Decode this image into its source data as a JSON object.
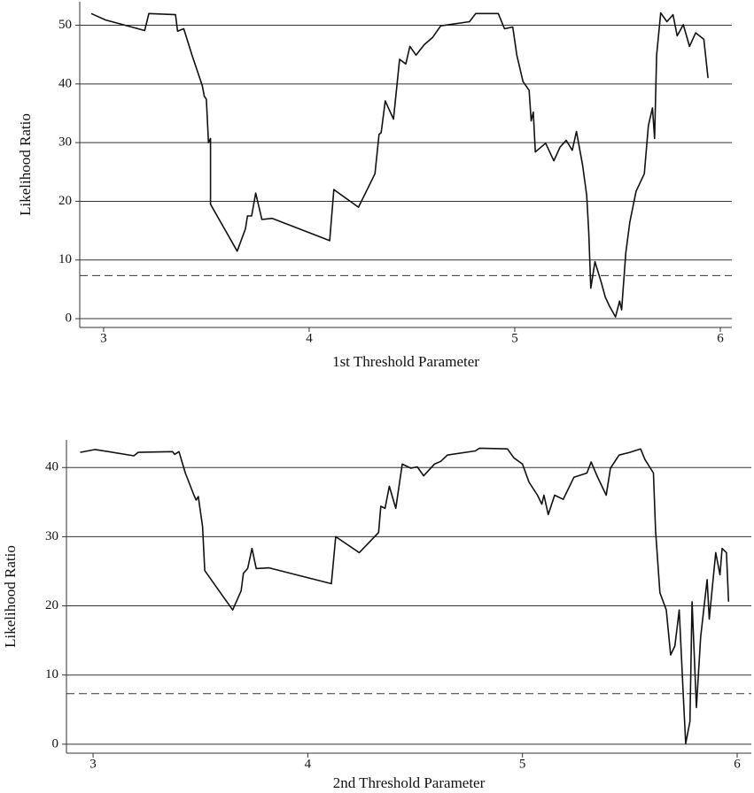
{
  "chart_data": [
    {
      "type": "line",
      "x_label": "1st Threshold Parameter",
      "y_label": "Likelihood Ratio",
      "xlim": [
        2.884,
        6.056
      ],
      "xticks": [
        3,
        4,
        5,
        6
      ],
      "ylim": [
        -1.5,
        54
      ],
      "yticks": [
        0,
        10,
        20,
        30,
        40,
        50
      ],
      "grid": true,
      "hlines": [
        7.35
      ],
      "hline_style": "dashed",
      "x": [
        2.94,
        3.01,
        3.2,
        3.22,
        3.35,
        3.36,
        3.39,
        3.43,
        3.48,
        3.49,
        3.5,
        3.51,
        3.52,
        3.52,
        3.65,
        3.69,
        3.7,
        3.72,
        3.74,
        3.77,
        3.82,
        4.1,
        4.12,
        4.24,
        4.32,
        4.34,
        4.35,
        4.37,
        4.41,
        4.44,
        4.47,
        4.49,
        4.52,
        4.56,
        4.6,
        4.64,
        4.78,
        4.81,
        4.92,
        4.95,
        4.99,
        5.01,
        5.04,
        5.07,
        5.08,
        5.09,
        5.1,
        5.15,
        5.19,
        5.22,
        5.25,
        5.28,
        5.3,
        5.33,
        5.35,
        5.36,
        5.37,
        5.39,
        5.42,
        5.44,
        5.46,
        5.49,
        5.51,
        5.52,
        5.54,
        5.56,
        5.59,
        5.63,
        5.65,
        5.67,
        5.68,
        5.69,
        5.71,
        5.74,
        5.77,
        5.79,
        5.82,
        5.85,
        5.88,
        5.92,
        5.94
      ],
      "series": [
        {
          "name": "Likelihood Ratio",
          "color": "#111111",
          "values": [
            52,
            50.9,
            49.1,
            52,
            51.8,
            49,
            49.4,
            44.9,
            39.7,
            37.9,
            37.4,
            30,
            30.7,
            19.5,
            11.5,
            15.3,
            17.5,
            17.5,
            21.4,
            16.9,
            17.1,
            13.3,
            22,
            19,
            24.7,
            31.4,
            31.7,
            37.1,
            34,
            44.2,
            43.4,
            46.4,
            44.9,
            46.7,
            47.9,
            49.9,
            50.6,
            52,
            52,
            49.4,
            49.7,
            44.9,
            40.4,
            38.9,
            33.7,
            35.2,
            28.4,
            29.9,
            26.9,
            29.2,
            30.4,
            28.7,
            31.9,
            26.2,
            21,
            14.7,
            5.2,
            9.7,
            6.3,
            3.7,
            2.2,
            0.3,
            3,
            1.5,
            11.2,
            16.5,
            21.7,
            24.7,
            32.9,
            35.9,
            30.7,
            44.9,
            52.1,
            50.6,
            51.8,
            48.2,
            50.1,
            46.4,
            48.7,
            47.6,
            41
          ]
        }
      ]
    },
    {
      "type": "line",
      "x_label": "2nd Threshold Parameter",
      "y_label": "Likelihood Ratio",
      "xlim": [
        2.876,
        6.066
      ],
      "xticks": [
        3,
        4,
        5,
        6
      ],
      "ylim": [
        -1.3,
        44
      ],
      "yticks": [
        0,
        10,
        20,
        30,
        40
      ],
      "grid": true,
      "hlines": [
        7.3
      ],
      "hline_style": "dashed",
      "x": [
        2.94,
        3.01,
        3.19,
        3.21,
        3.37,
        3.38,
        3.4,
        3.43,
        3.47,
        3.48,
        3.49,
        3.51,
        3.52,
        3.65,
        3.69,
        3.7,
        3.72,
        3.74,
        3.76,
        3.82,
        4.11,
        4.13,
        4.24,
        4.33,
        4.34,
        4.36,
        4.38,
        4.41,
        4.44,
        4.48,
        4.51,
        4.54,
        4.59,
        4.62,
        4.65,
        4.78,
        4.8,
        4.93,
        4.96,
        5.0,
        5.03,
        5.07,
        5.09,
        5.1,
        5.12,
        5.15,
        5.19,
        5.24,
        5.3,
        5.32,
        5.35,
        5.39,
        5.41,
        5.45,
        5.5,
        5.55,
        5.57,
        5.61,
        5.62,
        5.64,
        5.67,
        5.69,
        5.71,
        5.73,
        5.75,
        5.76,
        5.78,
        5.79,
        5.81,
        5.83,
        5.86,
        5.87,
        5.9,
        5.92,
        5.93,
        5.95,
        5.96
      ],
      "series": [
        {
          "name": "Likelihood Ratio",
          "color": "#111111",
          "values": [
            42.2,
            42.6,
            41.7,
            42.2,
            42.3,
            41.9,
            42.3,
            39.2,
            36,
            35.3,
            35.8,
            31.5,
            25.1,
            19.4,
            22.2,
            24.7,
            25.4,
            28.3,
            25.4,
            25.5,
            23.2,
            30,
            27.7,
            30.6,
            34.4,
            34.1,
            37.3,
            34.1,
            40.5,
            39.9,
            40.1,
            38.8,
            40.5,
            40.9,
            41.8,
            42.4,
            42.8,
            42.7,
            41.4,
            40.5,
            37.9,
            36,
            34.7,
            36,
            33.2,
            36,
            35.4,
            38.6,
            39.2,
            40.8,
            38.6,
            36,
            39.9,
            41.8,
            42.2,
            42.7,
            41.2,
            39.2,
            30.9,
            21.9,
            19.4,
            12.9,
            14.2,
            19.4,
            6.5,
            0.1,
            3.3,
            20.6,
            5.3,
            15.5,
            23.8,
            18.1,
            27.7,
            24.5,
            28.3,
            27.7,
            20.6
          ]
        }
      ]
    }
  ]
}
